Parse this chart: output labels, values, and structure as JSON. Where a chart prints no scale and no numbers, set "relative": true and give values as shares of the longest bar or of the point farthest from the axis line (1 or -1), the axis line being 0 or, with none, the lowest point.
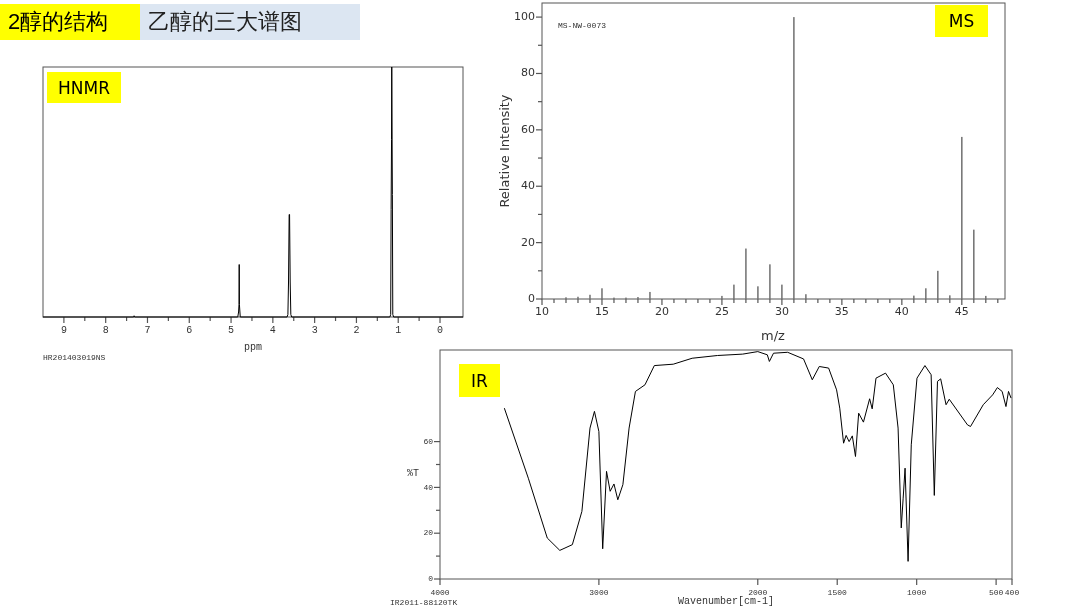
{
  "chart_data": [
    {
      "type": "line",
      "title": "HNMR",
      "xlabel": "ppm",
      "relative": true,
      "color": "#000000",
      "annotations": [
        "2醇的结构",
        "乙醇的三大谱图",
        "HR201403019NS"
      ],
      "xlim": [
        9.5,
        -0.55
      ],
      "xticks": [
        9,
        {
          "value": 8.5,
          "label": null
        },
        8,
        {
          "value": 7.5,
          "label": null
        },
        7,
        {
          "value": 6.5,
          "label": null
        },
        6,
        {
          "value": 5.5,
          "label": null
        },
        5,
        {
          "value": 4.5,
          "label": null
        },
        4,
        {
          "value": 3.5,
          "label": null
        },
        3,
        {
          "value": 2.5,
          "label": null
        },
        2,
        {
          "value": 1.5,
          "label": null
        },
        1,
        {
          "value": 0.5,
          "label": null
        },
        0
      ],
      "x": [
        9.5,
        7.33,
        7.32,
        7.31,
        4.84,
        4.82,
        4.81,
        4.805,
        4.8,
        4.78,
        3.66,
        3.64,
        3.625,
        3.61,
        3.6,
        3.585,
        3.57,
        3.55,
        1.2,
        1.18,
        1.17,
        1.16,
        1.155,
        1.14,
        1.13,
        1.11,
        -0.55
      ],
      "values": [
        0,
        0,
        0.005,
        0,
        0,
        0.02,
        0.05,
        0.21,
        0.05,
        0,
        0,
        0.01,
        0.14,
        0.41,
        0.41,
        0.14,
        0.01,
        0,
        0,
        0.01,
        0.43,
        0.71,
        1,
        0.49,
        0.01,
        0,
        0
      ]
    },
    {
      "type": "bar",
      "title": "MS",
      "xlabel": "m/z",
      "ylabel": "Relative Intensity",
      "color": "#707070",
      "annotations": [
        "MS-NW-0073"
      ],
      "xlim": [
        10,
        48.6
      ],
      "ylim": [
        0,
        105
      ],
      "xticks": [
        10,
        {
          "value": 11,
          "label": null
        },
        {
          "value": 12,
          "label": null
        },
        {
          "value": 13,
          "label": null
        },
        {
          "value": 14,
          "label": null
        },
        15,
        {
          "value": 16,
          "label": null
        },
        {
          "value": 17,
          "label": null
        },
        {
          "value": 18,
          "label": null
        },
        {
          "value": 19,
          "label": null
        },
        20,
        {
          "value": 21,
          "label": null
        },
        {
          "value": 22,
          "label": null
        },
        {
          "value": 23,
          "label": null
        },
        {
          "value": 24,
          "label": null
        },
        25,
        {
          "value": 26,
          "label": null
        },
        {
          "value": 27,
          "label": null
        },
        {
          "value": 28,
          "label": null
        },
        {
          "value": 29,
          "label": null
        },
        30,
        {
          "value": 31,
          "label": null
        },
        {
          "value": 32,
          "label": null
        },
        {
          "value": 33,
          "label": null
        },
        {
          "value": 34,
          "label": null
        },
        35,
        {
          "value": 36,
          "label": null
        },
        {
          "value": 37,
          "label": null
        },
        {
          "value": 38,
          "label": null
        },
        {
          "value": 39,
          "label": null
        },
        40,
        {
          "value": 41,
          "label": null
        },
        {
          "value": 42,
          "label": null
        },
        {
          "value": 43,
          "label": null
        },
        {
          "value": 44,
          "label": null
        },
        45,
        {
          "value": 46,
          "label": null
        },
        {
          "value": 47,
          "label": null
        },
        {
          "value": 48,
          "label": null
        }
      ],
      "yticks": [
        0,
        {
          "value": 10,
          "label": null
        },
        20,
        {
          "value": 30,
          "label": null
        },
        40,
        {
          "value": 50,
          "label": null
        },
        60,
        {
          "value": 70,
          "label": null
        },
        80,
        {
          "value": 90,
          "label": null
        },
        100
      ],
      "x": [
        12,
        13,
        14,
        15,
        16,
        17,
        18,
        19,
        25,
        26,
        27,
        28,
        29,
        30,
        31,
        32,
        41,
        42,
        43,
        44,
        45,
        46,
        47
      ],
      "values": [
        0.6,
        0.8,
        1.5,
        3.8,
        0.5,
        0.5,
        0.7,
        2.5,
        1.1,
        5.1,
        17.9,
        4.5,
        12.3,
        5.1,
        100,
        1.7,
        1.2,
        3.8,
        10,
        1.3,
        57.5,
        24.6,
        1.1
      ]
    },
    {
      "type": "line",
      "title": "IR",
      "xlabel": "Wavenumber[cm-1]",
      "ylabel": "%T",
      "color": "#000000",
      "annotations": [
        "IR2011-88120TK"
      ],
      "xlim": [
        4000,
        400
      ],
      "ylim": [
        0,
        100
      ],
      "xticks": [
        4000,
        3000,
        2000,
        1500,
        1000,
        500,
        400
      ],
      "yticks": [
        0,
        {
          "value": 10,
          "label": null
        },
        20,
        {
          "value": 30,
          "label": null
        },
        40,
        {
          "value": 50,
          "label": null
        },
        60
      ],
      "x": [
        3595,
        3444,
        3325,
        3246,
        3167,
        3107,
        3056,
        3028,
        3000,
        2976,
        2952,
        2929,
        2905,
        2881,
        2849,
        2810,
        2770,
        2710,
        2651,
        2532,
        2413,
        2254,
        2095,
        2000,
        1940,
        1927,
        1901,
        1812,
        1712,
        1657,
        1613,
        1554,
        1504,
        1484,
        1460,
        1444,
        1425,
        1405,
        1385,
        1365,
        1335,
        1296,
        1280,
        1256,
        1196,
        1147,
        1117,
        1097,
        1085,
        1073,
        1054,
        1034,
        998,
        948,
        909,
        889,
        869,
        849,
        815,
        795,
        680,
        661,
        581,
        522,
        492,
        462,
        438,
        422,
        406
      ],
      "values": [
        74.6,
        44,
        17.9,
        12.5,
        15,
        29.5,
        65.9,
        73.2,
        64.4,
        13.2,
        47,
        38.3,
        41.5,
        34.6,
        41.2,
        65.9,
        81.9,
        84.8,
        93.2,
        93.8,
        96.4,
        97.6,
        98.2,
        99.3,
        97.9,
        95,
        98.6,
        99,
        96.1,
        87,
        92.8,
        92.1,
        82.6,
        74.6,
        59.3,
        62.7,
        60,
        62.5,
        53.5,
        72.4,
        68.5,
        78.7,
        74.3,
        87.7,
        89.9,
        84.8,
        65.9,
        22.3,
        35.3,
        48.4,
        7.7,
        58.6,
        87.7,
        93.2,
        89.2,
        36.5,
        86.3,
        87.4,
        76.1,
        78.5,
        67.3,
        66.6,
        76.1,
        80.4,
        83.6,
        81.9,
        75.3,
        81.9,
        79
      ]
    }
  ]
}
